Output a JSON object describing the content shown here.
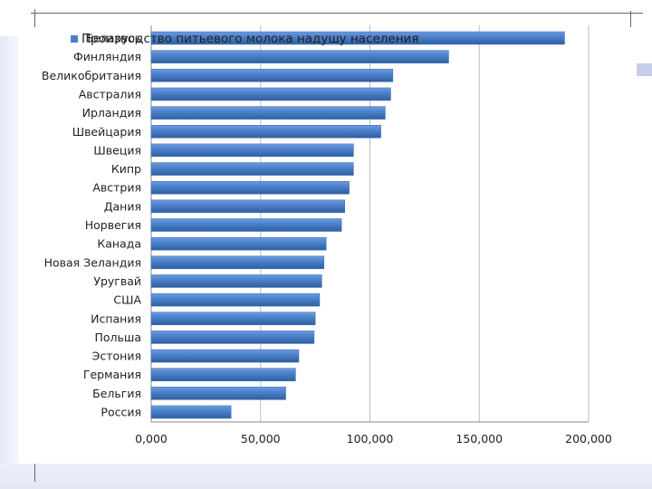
{
  "chart_data": {
    "type": "bar",
    "orientation": "horizontal",
    "title": "",
    "legend": {
      "label": "Производство питьевого молока надушу населения",
      "placement": "top-left"
    },
    "categories": [
      "Беларусь",
      "Финляндия",
      "Великобритания",
      "Австралия",
      "Ирландия",
      "Швейцария",
      "Швеция",
      "Кипр",
      "Австрия",
      "Дания",
      "Норвегия",
      "Канада",
      "Новая Зеландия",
      "Уругвай",
      "США",
      "Испания",
      "Польша",
      "Эстония",
      "Германия",
      "Бельгия",
      "Россия"
    ],
    "series": [
      {
        "name": "Производство питьевого молока надушу населения",
        "values": [
          189,
          136,
          110.5,
          109.5,
          107,
          105,
          92.5,
          92.5,
          90.5,
          88.5,
          87,
          80,
          79,
          78,
          77,
          75,
          74.5,
          67.5,
          66,
          61.5,
          36.5
        ]
      }
    ],
    "x_ticks": [
      "0,000",
      "50,000",
      "100,000",
      "150,000",
      "200,000"
    ],
    "xlim": [
      0,
      200
    ],
    "xlabel": "",
    "ylabel": "",
    "grid": "vertical",
    "bar_color": "#4a7ec9"
  }
}
